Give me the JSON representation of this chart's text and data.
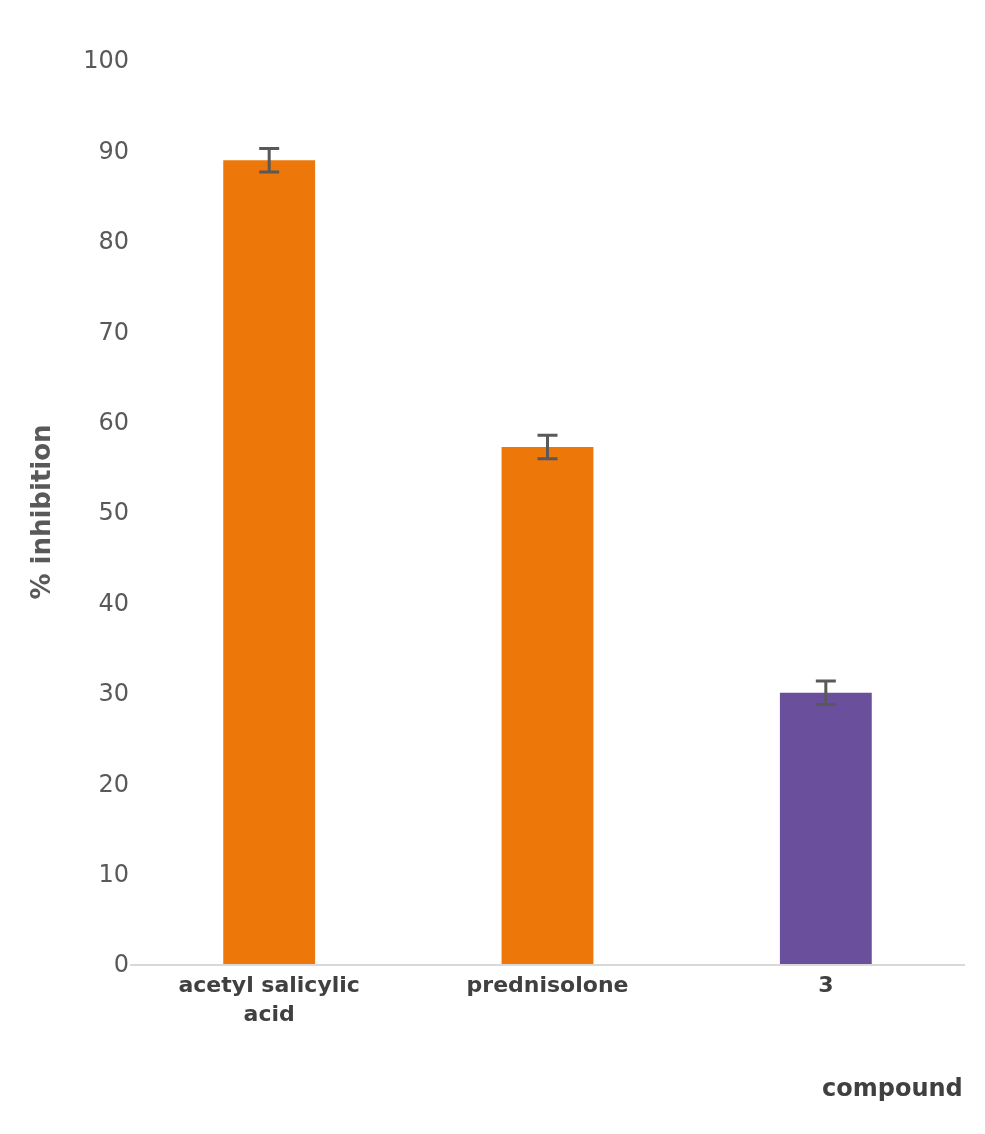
{
  "chart_data": {
    "type": "bar",
    "categories": [
      "acetyl salicylic acid",
      "prednisolone",
      "3"
    ],
    "values": [
      88.9,
      57.2,
      30.0
    ],
    "colors": [
      "#ee770a",
      "#ee770a",
      "#6a4f9c"
    ],
    "errors": [
      1.3,
      1.3,
      1.3
    ],
    "ylabel": "% inhibition",
    "xlabel": "compound",
    "ylim": [
      0,
      100
    ],
    "yticks": [
      0,
      10,
      20,
      30,
      40,
      50,
      60,
      70,
      80,
      90,
      100
    ],
    "grid": false
  }
}
